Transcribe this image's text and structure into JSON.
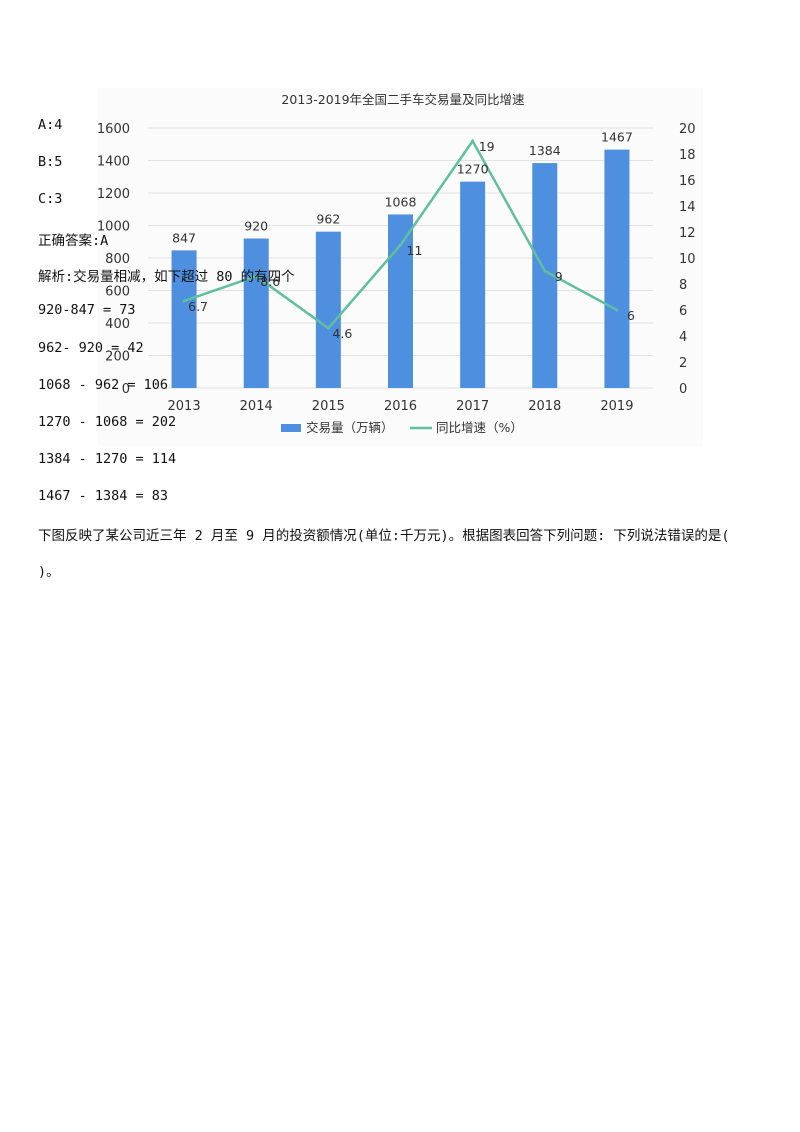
{
  "document": {
    "options": [
      "A:4",
      "B:5",
      "C:3"
    ],
    "answer": "正确答案:A",
    "analysis": "解析:交易量相减，如下超过 80 的有四个",
    "calculations": [
      "920-847 = 73",
      "962- 920 = 42",
      "1068 - 962 = 106",
      "1270 - 1068 = 202",
      "1384 - 1270 = 114",
      "1467 - 1384 = 83"
    ],
    "next_question": "下图反映了某公司近三年 2 月至 9 月的投资额情况(单位:千万元)。根据图表回答下列问题: 下列说法错误的是( )。"
  },
  "chart_data": {
    "type": "bar",
    "title": "2013-2019年全国二手车交易量及同比增速",
    "categories": [
      "2013",
      "2014",
      "2015",
      "2016",
      "2017",
      "2018",
      "2019"
    ],
    "series": [
      {
        "name": "交易量（万辆）",
        "type": "bar",
        "axis": "left",
        "values": [
          847,
          920,
          962,
          1068,
          1270,
          1384,
          1467
        ],
        "color": "#4f8fe0"
      },
      {
        "name": "同比增速（%）",
        "type": "line",
        "axis": "right",
        "values": [
          6.7,
          8.6,
          4.6,
          11,
          19,
          9,
          6
        ],
        "labels": [
          "6.7",
          "8.6",
          "4.6",
          "11",
          "19",
          "9",
          "6"
        ],
        "color": "#5fbf9f"
      }
    ],
    "left_axis": {
      "ylim": [
        0,
        1600
      ],
      "ticks": [
        "0",
        "200",
        "400",
        "600",
        "800",
        "1000",
        "1200",
        "1400",
        "1600"
      ]
    },
    "right_axis": {
      "ylim": [
        0,
        20
      ],
      "ticks": [
        "0",
        "2",
        "4",
        "6",
        "8",
        "10",
        "12",
        "14",
        "16",
        "18",
        "20"
      ]
    },
    "grid": true,
    "legend": "bottom"
  }
}
